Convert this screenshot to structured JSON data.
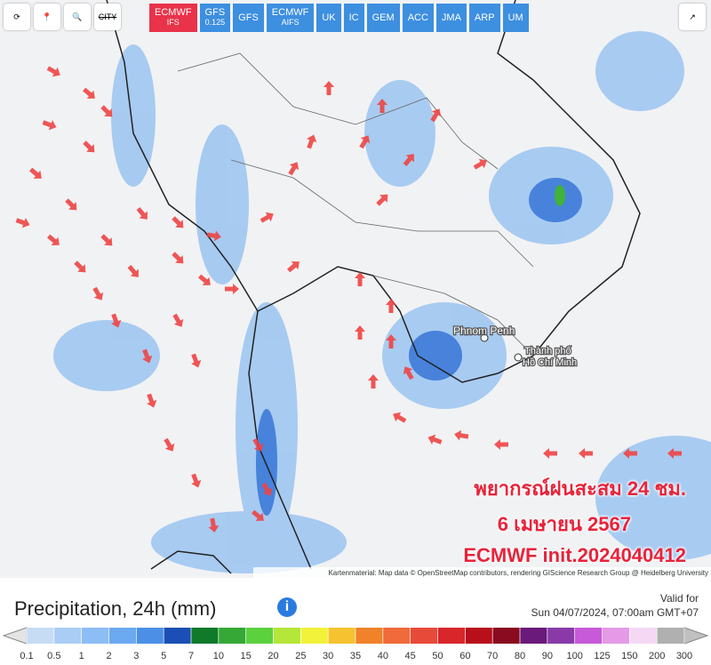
{
  "toolbar": {
    "city": "CITY",
    "models": [
      {
        "name": "ECMWF",
        "sub": "IFS"
      },
      {
        "name": "GFS",
        "sub": "0.125"
      },
      {
        "name": "GFS"
      },
      {
        "name": "ECMWF",
        "sub": "AIFS"
      },
      {
        "name": "UK"
      },
      {
        "name": "IC"
      },
      {
        "name": "GEM"
      },
      {
        "name": "ACC"
      },
      {
        "name": "JMA"
      },
      {
        "name": "ARP"
      },
      {
        "name": "UM"
      }
    ]
  },
  "map": {
    "cities": [
      "Phnom Penh",
      "Thành phố",
      "Hồ Chí Minh"
    ],
    "overlay": [
      "พยากรณ์ฝนสะสม 24 ชม.",
      "6 เมษายน 2567",
      "ECMWF init.2024040412"
    ],
    "attribution": "Kartenmaterial: Map data © OpenStreetMap contributors, rendering GIScience Research Group @ Heidelberg University"
  },
  "legend": {
    "title": "Precipitation, 24h (mm)",
    "valid_label": "Valid for",
    "valid_time": "Sun 04/07/2024, 07:00am GMT+07",
    "labels": [
      "0.1",
      "0.5",
      "1",
      "2",
      "3",
      "5",
      "7",
      "10",
      "15",
      "20",
      "25",
      "30",
      "35",
      "40",
      "45",
      "50",
      "60",
      "70",
      "80",
      "90",
      "100",
      "125",
      "150",
      "200",
      "300"
    ],
    "colors": [
      "#c6dcf5",
      "#a9cdf5",
      "#8cbdf4",
      "#6ba9f0",
      "#4b90e6",
      "#1c4fb5",
      "#0f7a2a",
      "#35a836",
      "#5cd13e",
      "#b5e63a",
      "#f2f23a",
      "#f5c330",
      "#f0822a",
      "#f06a3a",
      "#e84a3a",
      "#d8262a",
      "#b8101a",
      "#8a0a20",
      "#6a1a7a",
      "#8a3aa8",
      "#c65ad8",
      "#e59ae8",
      "#f4d8f4",
      "#b0b0b0"
    ]
  }
}
